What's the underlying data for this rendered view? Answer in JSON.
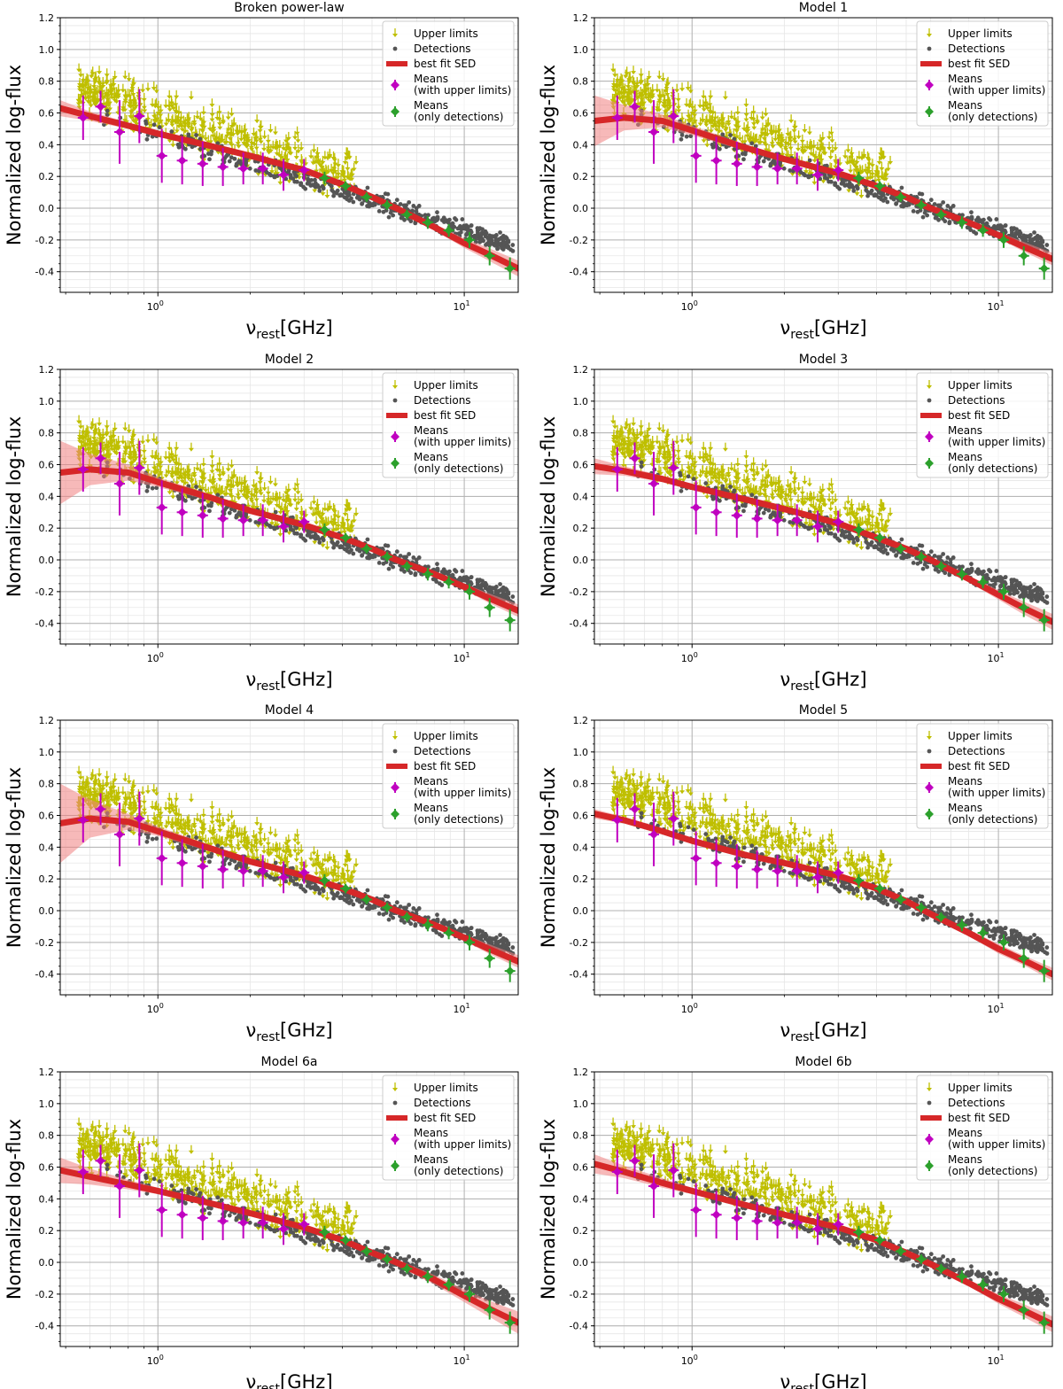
{
  "figure": {
    "xlabel_symbol": "ν",
    "xlabel_sub": "rest",
    "xlabel_unit": "[GHz]",
    "ylabel": "Normalized log-flux",
    "x_tick_labels": [
      {
        "base": "10",
        "exp": "0"
      },
      {
        "base": "10",
        "exp": "1"
      }
    ],
    "y_tick_labels": [
      "-0.4",
      "-0.2",
      "0.0",
      "0.2",
      "0.4",
      "0.6",
      "0.8",
      "1.0",
      "1.2"
    ],
    "legend": {
      "upper_limits": "Upper limits",
      "detections": "Detections",
      "best_fit": "best fit SED",
      "means_ul_1": "Means",
      "means_ul_2": "(with upper limits)",
      "means_det_1": "Means",
      "means_det_2": "(only detections)"
    }
  },
  "colors": {
    "upper_limits": "#bfbf00",
    "detections": "#555555",
    "fit_line": "#d62728",
    "fit_band": "#f08080",
    "means_ul": "#c000c0",
    "means_det": "#2ca02c"
  },
  "chart_data": {
    "type": "scatter",
    "xscale": "log",
    "xlim": [
      0.48,
      15
    ],
    "ylim": [
      -0.53,
      1.2
    ],
    "grid": true,
    "legend_position": "top-right",
    "means_with_upper_limits": {
      "x": [
        0.57,
        0.65,
        0.75,
        0.87,
        1.03,
        1.2,
        1.4,
        1.63,
        1.9,
        2.2,
        2.57,
        3.0
      ],
      "y": [
        0.57,
        0.64,
        0.48,
        0.58,
        0.33,
        0.3,
        0.28,
        0.26,
        0.25,
        0.25,
        0.21,
        0.24
      ],
      "yerr": [
        0.14,
        0.1,
        0.2,
        0.17,
        0.17,
        0.15,
        0.14,
        0.12,
        0.1,
        0.1,
        0.1,
        0.07
      ]
    },
    "means_only_detections": {
      "x": [
        3.5,
        4.1,
        4.8,
        5.6,
        6.5,
        7.6,
        8.9,
        10.4,
        12.1,
        14.1
      ],
      "y": [
        0.19,
        0.14,
        0.07,
        0.02,
        -0.04,
        -0.09,
        -0.14,
        -0.2,
        -0.3,
        -0.38
      ],
      "yerr": [
        0.04,
        0.03,
        0.03,
        0.03,
        0.03,
        0.04,
        0.04,
        0.05,
        0.06,
        0.07
      ]
    },
    "panels": [
      {
        "title": "Broken power-law",
        "fit": {
          "x": [
            0.48,
            0.6,
            0.8,
            1.0,
            1.5,
            2.0,
            3.0,
            4.0,
            5.0,
            6.0,
            8.0,
            10.0,
            12.0,
            15.0
          ],
          "y": [
            0.63,
            0.58,
            0.52,
            0.47,
            0.39,
            0.33,
            0.24,
            0.15,
            0.07,
            0.0,
            -0.12,
            -0.22,
            -0.29,
            -0.38
          ]
        },
        "band": [
          0.05,
          0.03,
          0.02,
          0.02,
          0.015,
          0.015,
          0.015,
          0.015,
          0.015,
          0.02,
          0.02,
          0.03,
          0.04,
          0.05
        ]
      },
      {
        "title": "Model 1",
        "fit": {
          "x": [
            0.48,
            0.6,
            0.8,
            1.0,
            1.5,
            2.0,
            3.0,
            4.0,
            5.0,
            6.0,
            8.0,
            10.0,
            12.0,
            15.0
          ],
          "y": [
            0.55,
            0.57,
            0.55,
            0.49,
            0.38,
            0.31,
            0.22,
            0.14,
            0.07,
            0.0,
            -0.09,
            -0.17,
            -0.24,
            -0.32
          ]
        },
        "band": [
          0.16,
          0.08,
          0.04,
          0.03,
          0.02,
          0.015,
          0.015,
          0.015,
          0.015,
          0.015,
          0.02,
          0.02,
          0.03,
          0.04
        ]
      },
      {
        "title": "Model 2",
        "fit": {
          "x": [
            0.48,
            0.6,
            0.8,
            1.0,
            1.5,
            2.0,
            3.0,
            4.0,
            5.0,
            6.0,
            8.0,
            10.0,
            12.0,
            15.0
          ],
          "y": [
            0.55,
            0.57,
            0.55,
            0.49,
            0.39,
            0.31,
            0.22,
            0.14,
            0.07,
            0.0,
            -0.09,
            -0.17,
            -0.24,
            -0.32
          ]
        },
        "band": [
          0.2,
          0.1,
          0.05,
          0.03,
          0.02,
          0.015,
          0.015,
          0.015,
          0.015,
          0.015,
          0.02,
          0.02,
          0.03,
          0.04
        ]
      },
      {
        "title": "Model 3",
        "fit": {
          "x": [
            0.48,
            0.6,
            0.8,
            1.0,
            1.5,
            2.0,
            3.0,
            4.0,
            5.0,
            6.0,
            8.0,
            10.0,
            12.0,
            15.0
          ],
          "y": [
            0.59,
            0.56,
            0.51,
            0.46,
            0.38,
            0.32,
            0.23,
            0.14,
            0.07,
            0.0,
            -0.12,
            -0.22,
            -0.3,
            -0.39
          ]
        },
        "band": [
          0.05,
          0.03,
          0.02,
          0.02,
          0.015,
          0.015,
          0.015,
          0.015,
          0.015,
          0.02,
          0.02,
          0.03,
          0.04,
          0.05
        ]
      },
      {
        "title": "Model 4",
        "fit": {
          "x": [
            0.48,
            0.6,
            0.8,
            1.0,
            1.5,
            2.0,
            3.0,
            4.0,
            5.0,
            6.0,
            8.0,
            10.0,
            12.0,
            15.0
          ],
          "y": [
            0.55,
            0.58,
            0.56,
            0.5,
            0.39,
            0.31,
            0.22,
            0.14,
            0.07,
            0.0,
            -0.09,
            -0.17,
            -0.24,
            -0.32
          ]
        },
        "band": [
          0.25,
          0.12,
          0.05,
          0.03,
          0.02,
          0.015,
          0.015,
          0.015,
          0.015,
          0.015,
          0.02,
          0.02,
          0.03,
          0.04
        ]
      },
      {
        "title": "Model 5",
        "fit": {
          "x": [
            0.48,
            0.6,
            0.8,
            1.0,
            1.5,
            2.0,
            3.0,
            4.0,
            5.0,
            6.0,
            8.0,
            10.0,
            12.0,
            15.0
          ],
          "y": [
            0.61,
            0.57,
            0.5,
            0.44,
            0.35,
            0.3,
            0.22,
            0.14,
            0.06,
            -0.02,
            -0.14,
            -0.24,
            -0.31,
            -0.4
          ]
        },
        "band": [
          0.03,
          0.02,
          0.015,
          0.015,
          0.015,
          0.015,
          0.015,
          0.015,
          0.015,
          0.02,
          0.02,
          0.03,
          0.03,
          0.04
        ]
      },
      {
        "title": "Model 6a",
        "fit": {
          "x": [
            0.48,
            0.6,
            0.8,
            1.0,
            1.5,
            2.0,
            3.0,
            4.0,
            5.0,
            6.0,
            8.0,
            10.0,
            12.0,
            15.0
          ],
          "y": [
            0.58,
            0.54,
            0.49,
            0.45,
            0.37,
            0.31,
            0.22,
            0.14,
            0.06,
            0.0,
            -0.11,
            -0.21,
            -0.29,
            -0.38
          ]
        },
        "band": [
          0.08,
          0.05,
          0.03,
          0.02,
          0.015,
          0.015,
          0.015,
          0.015,
          0.015,
          0.02,
          0.03,
          0.04,
          0.05,
          0.07
        ]
      },
      {
        "title": "Model 6b",
        "fit": {
          "x": [
            0.48,
            0.6,
            0.8,
            1.0,
            1.5,
            2.0,
            3.0,
            4.0,
            5.0,
            6.0,
            8.0,
            10.0,
            12.0,
            15.0
          ],
          "y": [
            0.62,
            0.57,
            0.5,
            0.45,
            0.36,
            0.3,
            0.22,
            0.14,
            0.06,
            -0.01,
            -0.13,
            -0.23,
            -0.3,
            -0.39
          ]
        },
        "band": [
          0.06,
          0.04,
          0.03,
          0.02,
          0.015,
          0.015,
          0.015,
          0.015,
          0.015,
          0.02,
          0.02,
          0.03,
          0.04,
          0.05
        ]
      }
    ]
  }
}
